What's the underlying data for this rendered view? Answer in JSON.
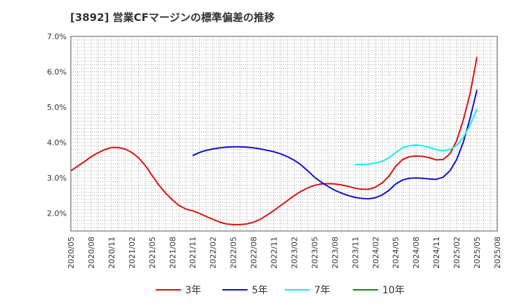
{
  "chart_data": {
    "type": "line",
    "title": "[3892]  営業CFマージンの標準偏差の推移",
    "xlabel": "",
    "ylabel": "",
    "ylim": [
      1.5,
      7.0
    ],
    "yticks": [
      2.0,
      3.0,
      4.0,
      5.0,
      6.0,
      7.0
    ],
    "ytick_labels": [
      "2.0%",
      "3.0%",
      "4.0%",
      "5.0%",
      "6.0%",
      "7.0%"
    ],
    "xlim": [
      "2020/05",
      "2025/08"
    ],
    "xtick_labels": [
      "2020/05",
      "2020/08",
      "2020/11",
      "2021/02",
      "2021/05",
      "2021/08",
      "2021/11",
      "2022/02",
      "2022/05",
      "2022/08",
      "2022/11",
      "2023/02",
      "2023/05",
      "2023/08",
      "2023/11",
      "2024/02",
      "2024/05",
      "2024/08",
      "2024/11",
      "2025/02",
      "2025/05",
      "2025/08"
    ],
    "grid": true,
    "legend_position": "bottom",
    "series": [
      {
        "name": "3年",
        "color": "#dd1111",
        "x": [
          "2020/05",
          "2020/06",
          "2020/07",
          "2020/08",
          "2020/09",
          "2020/10",
          "2020/11",
          "2020/12",
          "2021/01",
          "2021/02",
          "2021/03",
          "2021/04",
          "2021/05",
          "2021/06",
          "2021/07",
          "2021/08",
          "2021/09",
          "2021/10",
          "2021/11",
          "2021/12",
          "2022/01",
          "2022/02",
          "2022/03",
          "2022/04",
          "2022/05",
          "2022/06",
          "2022/07",
          "2022/08",
          "2022/09",
          "2022/10",
          "2022/11",
          "2022/12",
          "2023/01",
          "2023/02",
          "2023/03",
          "2023/04",
          "2023/05",
          "2023/06",
          "2023/07",
          "2023/08",
          "2023/09",
          "2023/10",
          "2023/11",
          "2023/12",
          "2024/01",
          "2024/02",
          "2024/03",
          "2024/04",
          "2024/05",
          "2024/06",
          "2024/07",
          "2024/08",
          "2024/09",
          "2024/10",
          "2024/11",
          "2024/12",
          "2025/01",
          "2025/02",
          "2025/03",
          "2025/04",
          "2025/05"
        ],
        "values": [
          3.2,
          3.33,
          3.46,
          3.6,
          3.71,
          3.8,
          3.86,
          3.86,
          3.82,
          3.72,
          3.57,
          3.35,
          3.07,
          2.8,
          2.57,
          2.38,
          2.22,
          2.12,
          2.07,
          2.0,
          1.91,
          1.83,
          1.75,
          1.7,
          1.68,
          1.68,
          1.7,
          1.75,
          1.83,
          1.95,
          2.08,
          2.22,
          2.36,
          2.5,
          2.62,
          2.72,
          2.79,
          2.83,
          2.84,
          2.83,
          2.8,
          2.76,
          2.71,
          2.68,
          2.68,
          2.74,
          2.86,
          3.05,
          3.33,
          3.52,
          3.6,
          3.62,
          3.61,
          3.57,
          3.51,
          3.52,
          3.68,
          4.05,
          4.65,
          5.4,
          6.42
        ]
      },
      {
        "name": "5年",
        "color": "#1111cc",
        "x": [
          "2021/11",
          "2021/12",
          "2022/01",
          "2022/02",
          "2022/03",
          "2022/04",
          "2022/05",
          "2022/06",
          "2022/07",
          "2022/08",
          "2022/09",
          "2022/10",
          "2022/11",
          "2022/12",
          "2023/01",
          "2023/02",
          "2023/03",
          "2023/04",
          "2023/05",
          "2023/06",
          "2023/07",
          "2023/08",
          "2023/09",
          "2023/10",
          "2023/11",
          "2023/12",
          "2024/01",
          "2024/02",
          "2024/03",
          "2024/04",
          "2024/05",
          "2024/06",
          "2024/07",
          "2024/08",
          "2024/09",
          "2024/10",
          "2024/11",
          "2024/12",
          "2025/01",
          "2025/02",
          "2025/03",
          "2025/04",
          "2025/05"
        ],
        "values": [
          3.63,
          3.72,
          3.78,
          3.82,
          3.85,
          3.87,
          3.88,
          3.88,
          3.87,
          3.85,
          3.82,
          3.78,
          3.74,
          3.68,
          3.6,
          3.5,
          3.37,
          3.2,
          3.02,
          2.88,
          2.76,
          2.65,
          2.57,
          2.5,
          2.45,
          2.42,
          2.41,
          2.44,
          2.52,
          2.65,
          2.83,
          2.94,
          2.99,
          3.0,
          2.99,
          2.97,
          2.96,
          3.02,
          3.2,
          3.52,
          4.02,
          4.7,
          5.49
        ]
      },
      {
        "name": "7年",
        "color": "#11eeee",
        "x": [
          "2023/11",
          "2023/12",
          "2024/01",
          "2024/02",
          "2024/03",
          "2024/04",
          "2024/05",
          "2024/06",
          "2024/07",
          "2024/08",
          "2024/09",
          "2024/10",
          "2024/11",
          "2024/12",
          "2025/01",
          "2025/02",
          "2025/03",
          "2025/04",
          "2025/05"
        ],
        "values": [
          3.38,
          3.38,
          3.39,
          3.42,
          3.47,
          3.57,
          3.72,
          3.85,
          3.91,
          3.93,
          3.91,
          3.86,
          3.8,
          3.77,
          3.8,
          3.92,
          4.15,
          4.5,
          4.95
        ]
      },
      {
        "name": "10年",
        "color": "#118811",
        "x": [],
        "values": []
      }
    ]
  }
}
